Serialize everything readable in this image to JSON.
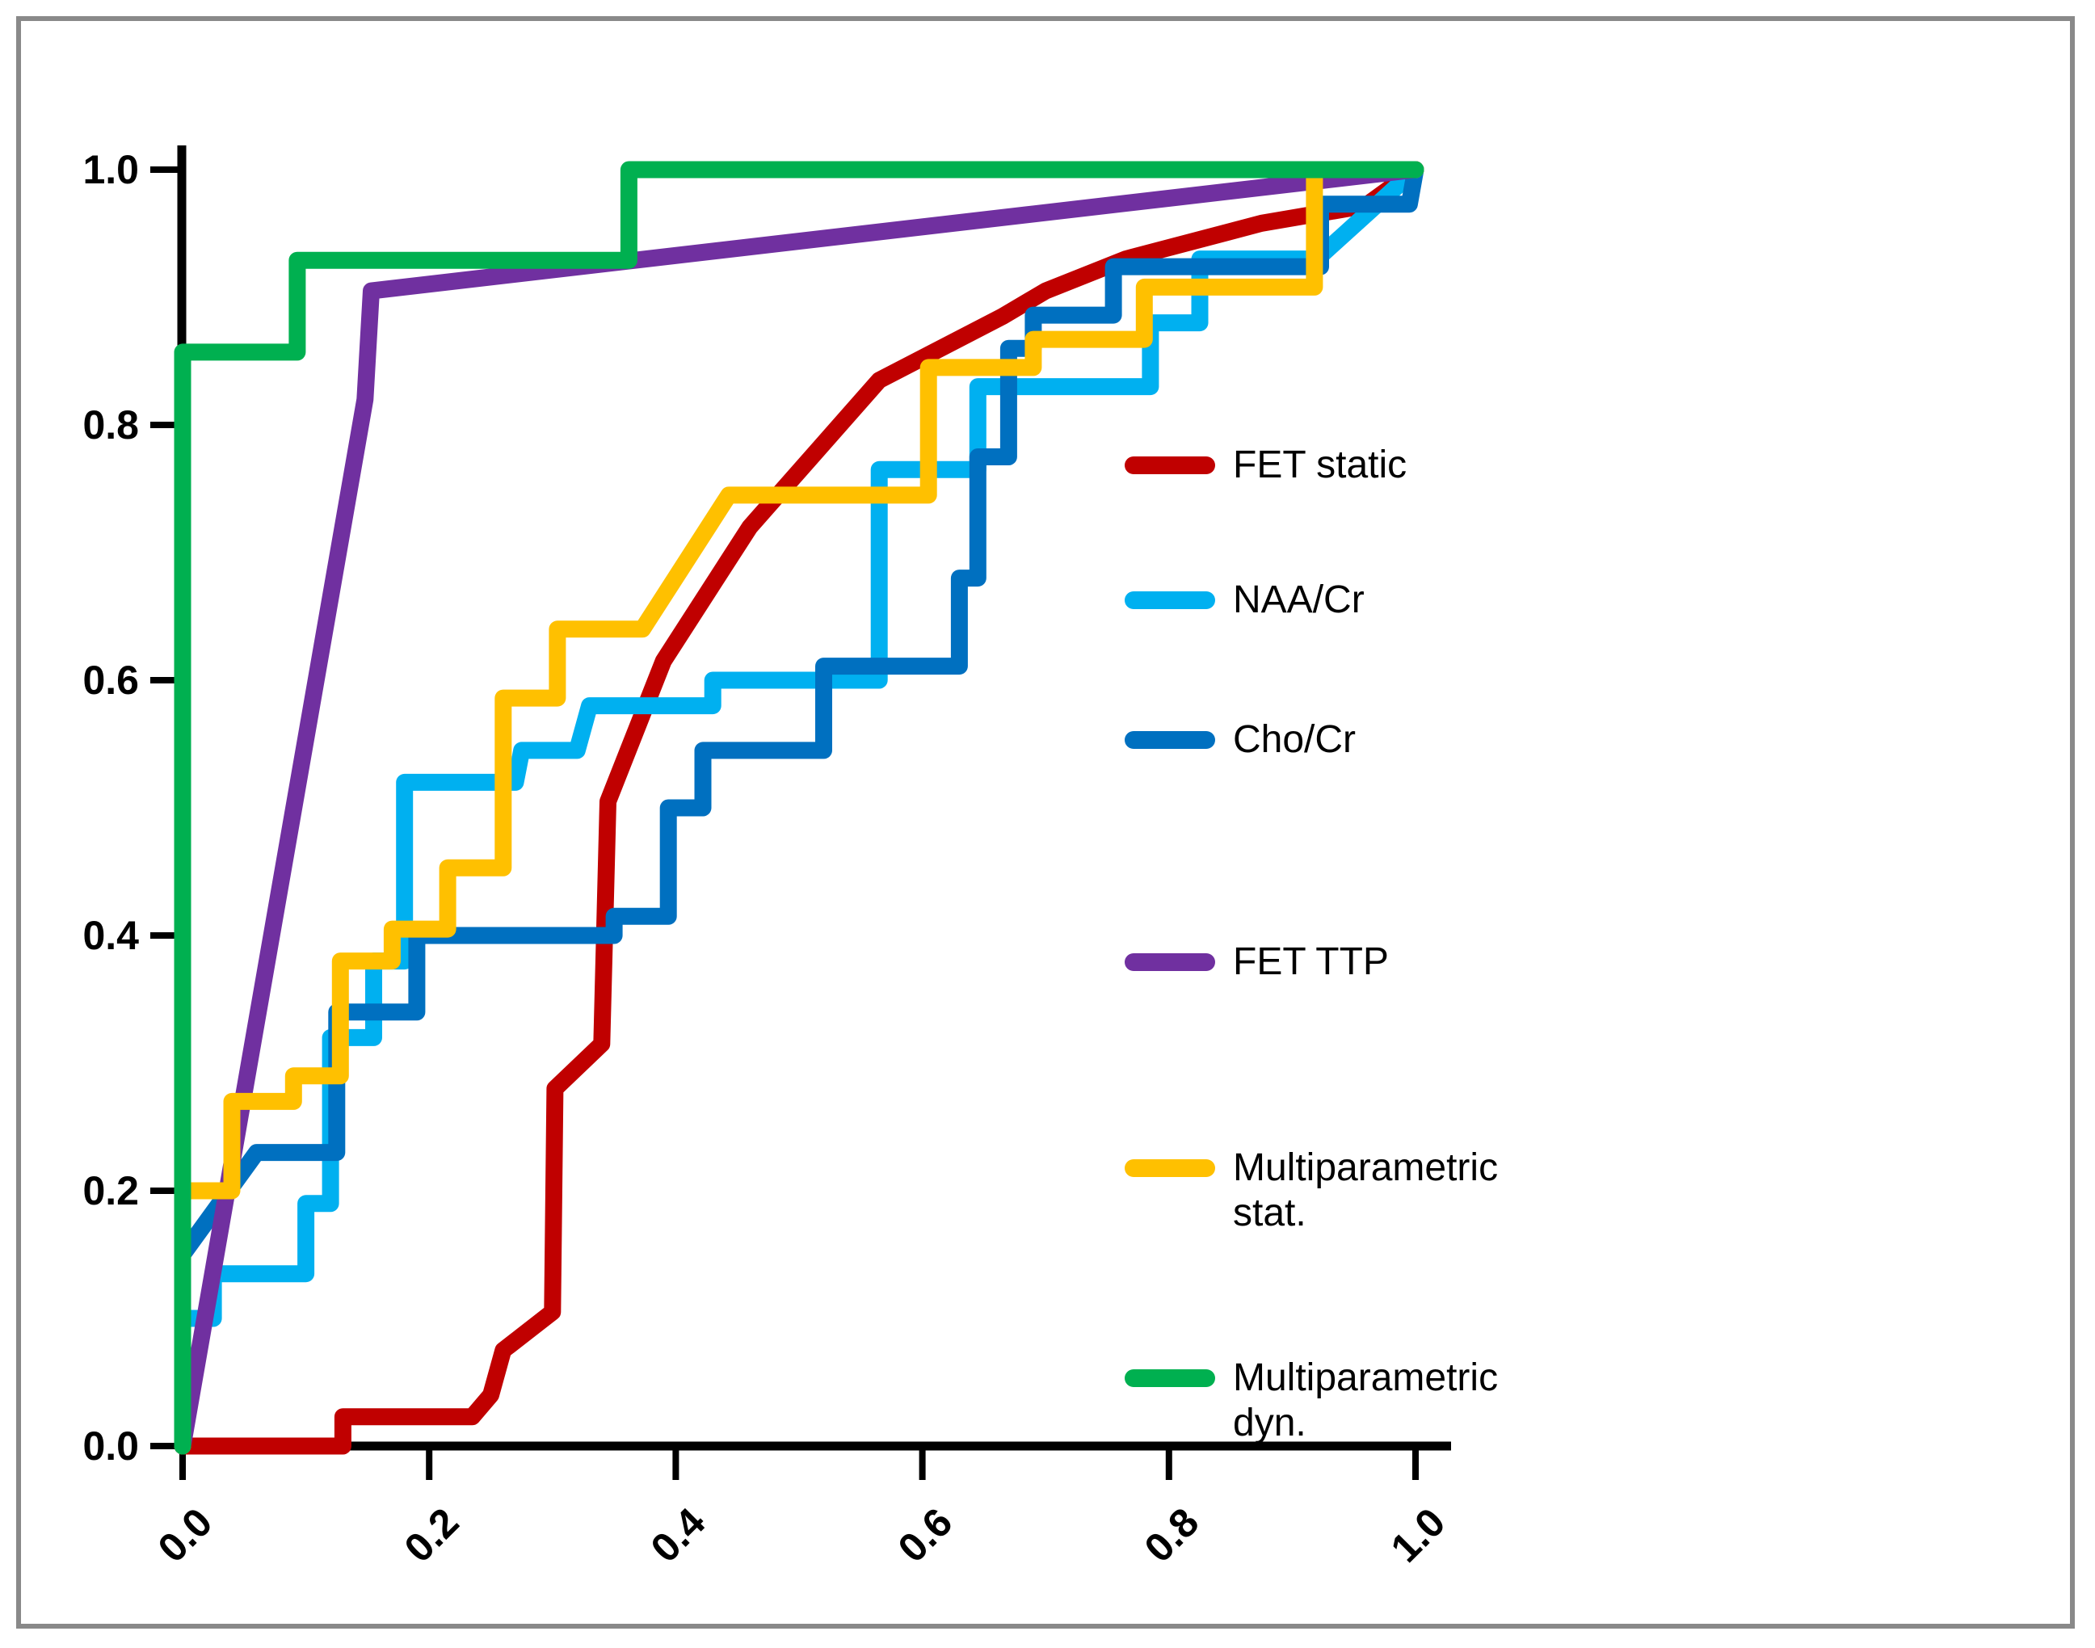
{
  "chart_data": {
    "type": "line",
    "title": "",
    "xlabel": "",
    "ylabel": "",
    "xlim": [
      0.0,
      1.0
    ],
    "ylim": [
      0.0,
      1.0
    ],
    "grid": false,
    "legend_position": "right-inside",
    "x_tick_labels": [
      "0.0",
      "0.2",
      "0.4",
      "0.6",
      "0.8",
      "1.0"
    ],
    "y_tick_labels": [
      "0.0",
      "0.2",
      "0.4",
      "0.6",
      "0.8",
      "1.0"
    ],
    "x_tick_values": [
      0.0,
      0.2,
      0.4,
      0.6,
      0.8,
      1.0
    ],
    "y_tick_values": [
      0.0,
      0.2,
      0.4,
      0.6,
      0.8,
      1.0
    ],
    "axis_color": "#000000",
    "series": [
      {
        "name": "FET static",
        "color": "#C00000",
        "points": [
          [
            0,
            0
          ],
          [
            0.13,
            0
          ],
          [
            0.13,
            0.023
          ],
          [
            0.235,
            0.023
          ],
          [
            0.25,
            0.04
          ],
          [
            0.26,
            0.075
          ],
          [
            0.3,
            0.105
          ],
          [
            0.302,
            0.28
          ],
          [
            0.34,
            0.315
          ],
          [
            0.345,
            0.505
          ],
          [
            0.39,
            0.615
          ],
          [
            0.46,
            0.72
          ],
          [
            0.565,
            0.835
          ],
          [
            0.665,
            0.885
          ],
          [
            0.7,
            0.905
          ],
          [
            0.765,
            0.93
          ],
          [
            0.875,
            0.958
          ],
          [
            0.96,
            0.972
          ],
          [
            1,
            1
          ]
        ]
      },
      {
        "name": "NAA/Cr",
        "color": "#00B0F0",
        "points": [
          [
            0,
            0
          ],
          [
            0,
            0.1
          ],
          [
            0.025,
            0.1
          ],
          [
            0.025,
            0.135
          ],
          [
            0.1,
            0.135
          ],
          [
            0.1,
            0.19
          ],
          [
            0.12,
            0.19
          ],
          [
            0.12,
            0.32
          ],
          [
            0.155,
            0.32
          ],
          [
            0.155,
            0.38
          ],
          [
            0.18,
            0.38
          ],
          [
            0.18,
            0.52
          ],
          [
            0.27,
            0.52
          ],
          [
            0.275,
            0.545
          ],
          [
            0.32,
            0.545
          ],
          [
            0.33,
            0.58
          ],
          [
            0.43,
            0.58
          ],
          [
            0.43,
            0.6
          ],
          [
            0.565,
            0.6
          ],
          [
            0.565,
            0.765
          ],
          [
            0.645,
            0.765
          ],
          [
            0.645,
            0.83
          ],
          [
            0.785,
            0.83
          ],
          [
            0.785,
            0.88
          ],
          [
            0.825,
            0.88
          ],
          [
            0.825,
            0.93
          ],
          [
            0.92,
            0.93
          ],
          [
            1,
            1
          ]
        ]
      },
      {
        "name": "Cho/Cr",
        "color": "#0070C0",
        "points": [
          [
            0,
            0
          ],
          [
            0,
            0.15
          ],
          [
            0.06,
            0.23
          ],
          [
            0.125,
            0.23
          ],
          [
            0.125,
            0.34
          ],
          [
            0.19,
            0.34
          ],
          [
            0.19,
            0.4
          ],
          [
            0.35,
            0.4
          ],
          [
            0.35,
            0.415
          ],
          [
            0.394,
            0.415
          ],
          [
            0.394,
            0.5
          ],
          [
            0.422,
            0.5
          ],
          [
            0.422,
            0.545
          ],
          [
            0.52,
            0.545
          ],
          [
            0.52,
            0.611
          ],
          [
            0.63,
            0.611
          ],
          [
            0.63,
            0.68
          ],
          [
            0.645,
            0.68
          ],
          [
            0.645,
            0.775
          ],
          [
            0.67,
            0.775
          ],
          [
            0.67,
            0.86
          ],
          [
            0.69,
            0.86
          ],
          [
            0.69,
            0.886
          ],
          [
            0.755,
            0.886
          ],
          [
            0.755,
            0.924
          ],
          [
            0.923,
            0.924
          ],
          [
            0.923,
            0.973
          ],
          [
            0.995,
            0.973
          ],
          [
            1,
            1
          ]
        ]
      },
      {
        "name": "FET TTP",
        "color": "#7030A0",
        "points": [
          [
            0,
            0
          ],
          [
            0.148,
            0.82
          ],
          [
            0.153,
            0.905
          ],
          [
            1,
            1
          ]
        ]
      },
      {
        "name": "Multiparametric stat.",
        "color": "#FFC000",
        "points": [
          [
            0,
            0
          ],
          [
            0,
            0.2
          ],
          [
            0.04,
            0.2
          ],
          [
            0.04,
            0.27
          ],
          [
            0.09,
            0.27
          ],
          [
            0.09,
            0.29
          ],
          [
            0.128,
            0.29
          ],
          [
            0.128,
            0.38
          ],
          [
            0.17,
            0.38
          ],
          [
            0.17,
            0.405
          ],
          [
            0.215,
            0.405
          ],
          [
            0.215,
            0.453
          ],
          [
            0.26,
            0.453
          ],
          [
            0.26,
            0.586
          ],
          [
            0.304,
            0.586
          ],
          [
            0.304,
            0.64
          ],
          [
            0.373,
            0.64
          ],
          [
            0.443,
            0.745
          ],
          [
            0.605,
            0.745
          ],
          [
            0.605,
            0.845
          ],
          [
            0.69,
            0.845
          ],
          [
            0.69,
            0.867
          ],
          [
            0.78,
            0.867
          ],
          [
            0.78,
            0.908
          ],
          [
            0.918,
            0.908
          ],
          [
            0.918,
            1.0
          ],
          [
            1,
            1
          ]
        ]
      },
      {
        "name": "Multiparametric dyn.",
        "color": "#00B050",
        "points": [
          [
            0,
            0
          ],
          [
            0,
            0.857
          ],
          [
            0.093,
            0.857
          ],
          [
            0.093,
            0.929
          ],
          [
            0.362,
            0.929
          ],
          [
            0.362,
            1.0
          ],
          [
            1,
            1
          ]
        ]
      }
    ]
  },
  "frame": {
    "border_color": "#898989",
    "background": "#FFFFFF"
  }
}
